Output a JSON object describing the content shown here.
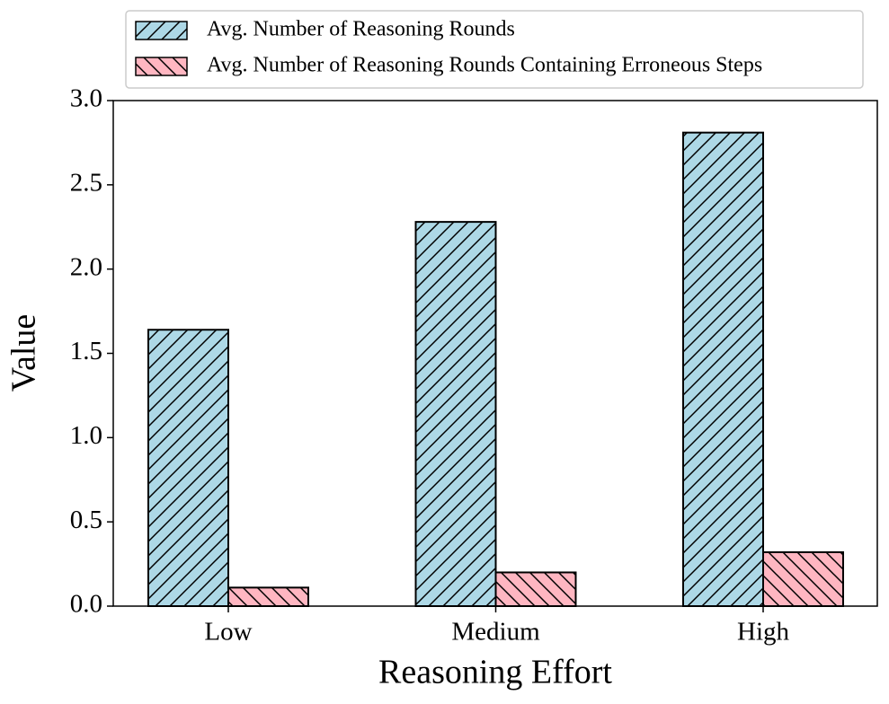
{
  "chart_data": {
    "type": "bar",
    "xlabel": "Reasoning Effort",
    "ylabel": "Value",
    "categories": [
      "Low",
      "Medium",
      "High"
    ],
    "series": [
      {
        "name": "Avg. Number of Reasoning Rounds",
        "color": "#add8e6",
        "hatch": "//",
        "values": [
          1.64,
          2.28,
          2.81
        ]
      },
      {
        "name": "Avg. Number of Reasoning Rounds Containing Erroneous Steps",
        "color": "#ffb6c1",
        "hatch": "\\\\",
        "values": [
          0.11,
          0.2,
          0.32
        ]
      }
    ],
    "ylim": [
      0,
      3
    ],
    "yticks": [
      {
        "value": 0,
        "label": "0.0"
      },
      0.5,
      {
        "value": 1,
        "label": "1.0"
      },
      1.5,
      {
        "value": 2,
        "label": "2.0"
      },
      2.5,
      {
        "value": 3,
        "label": "3.0"
      }
    ],
    "grid": false,
    "legend": "upper center outside"
  }
}
